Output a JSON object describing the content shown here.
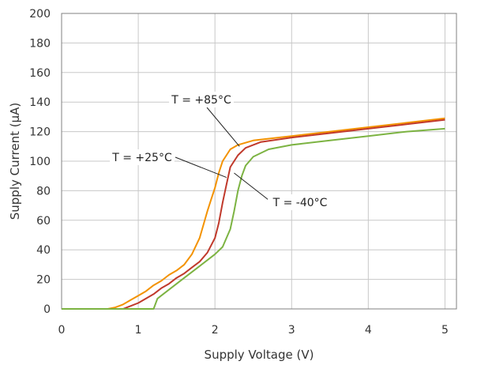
{
  "chart_data": {
    "type": "line",
    "xlabel": "Supply Voltage (V)",
    "ylabel": "Supply Current (µA)",
    "xlim": [
      0,
      5.15
    ],
    "ylim": [
      0,
      200
    ],
    "xticks": [
      "0",
      "1",
      "2",
      "3",
      "4",
      "5"
    ],
    "yticks": [
      "0",
      "20",
      "40",
      "60",
      "80",
      "100",
      "120",
      "140",
      "160",
      "180",
      "200"
    ],
    "grid": true,
    "series": [
      {
        "name": "T = +85°C",
        "color": "#F39200",
        "x": [
          0.0,
          0.6,
          0.7,
          0.8,
          0.9,
          1.0,
          1.1,
          1.2,
          1.3,
          1.4,
          1.5,
          1.6,
          1.7,
          1.8,
          1.9,
          1.95,
          2.0,
          2.05,
          2.1,
          2.2,
          2.3,
          2.5,
          3.0,
          3.5,
          4.0,
          4.5,
          5.0
        ],
        "y": [
          0,
          0,
          1,
          3,
          6,
          9,
          12,
          16,
          19,
          23,
          26,
          30,
          37,
          48,
          66,
          74,
          82,
          92,
          100,
          108,
          111,
          114,
          117,
          120,
          123,
          126,
          129
        ]
      },
      {
        "name": "T = +25°C",
        "color": "#C0392B",
        "x": [
          0.0,
          0.8,
          0.9,
          1.0,
          1.1,
          1.2,
          1.3,
          1.4,
          1.5,
          1.6,
          1.7,
          1.8,
          1.9,
          2.0,
          2.05,
          2.1,
          2.15,
          2.2,
          2.3,
          2.4,
          2.6,
          3.0,
          3.5,
          4.0,
          4.5,
          5.0
        ],
        "y": [
          0,
          0,
          2,
          4,
          7,
          10,
          14,
          17,
          21,
          24,
          28,
          32,
          38,
          48,
          58,
          72,
          84,
          96,
          104,
          109,
          113,
          116,
          119,
          122,
          125,
          128
        ]
      },
      {
        "name": "T = -40°C",
        "color": "#7CB342",
        "x": [
          0.0,
          1.2,
          1.25,
          1.3,
          1.4,
          1.5,
          1.6,
          1.7,
          1.8,
          1.9,
          2.0,
          2.1,
          2.2,
          2.25,
          2.3,
          2.35,
          2.4,
          2.5,
          2.7,
          3.0,
          3.5,
          4.0,
          4.5,
          5.0
        ],
        "y": [
          0,
          0,
          7,
          9,
          13,
          17,
          21,
          25,
          29,
          33,
          37,
          42,
          54,
          66,
          80,
          90,
          97,
          103,
          108,
          111,
          114,
          117,
          120,
          122
        ]
      }
    ],
    "annotations": [
      {
        "text": "T = +85°C",
        "series": 0
      },
      {
        "text": "T = +25°C",
        "series": 1
      },
      {
        "text": "T = -40°C",
        "series": 2
      }
    ]
  }
}
